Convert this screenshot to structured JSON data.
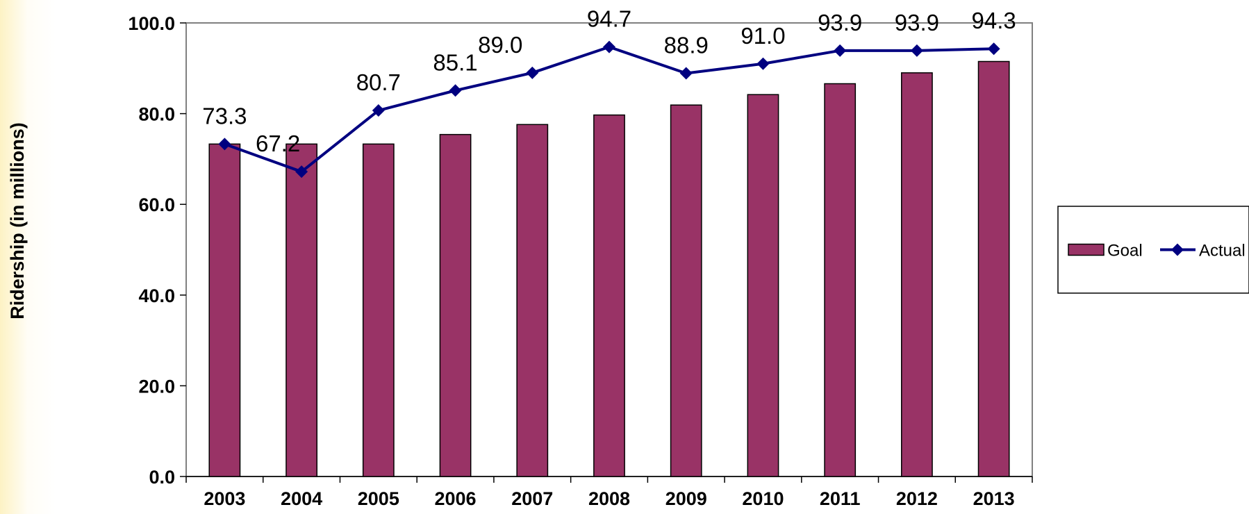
{
  "chart_data": {
    "type": "bar",
    "categories": [
      "2003",
      "2004",
      "2005",
      "2006",
      "2007",
      "2008",
      "2009",
      "2010",
      "2011",
      "2012",
      "2013"
    ],
    "series": [
      {
        "name": "Goal",
        "type": "bar",
        "values": [
          73.3,
          73.3,
          73.3,
          75.4,
          77.6,
          79.7,
          81.9,
          84.2,
          86.6,
          89.0,
          91.5
        ],
        "color": "#993366"
      },
      {
        "name": "Actual",
        "type": "line",
        "values": [
          73.3,
          67.2,
          80.7,
          85.1,
          89.0,
          94.7,
          88.9,
          91.0,
          93.9,
          93.9,
          94.3
        ],
        "data_labels": [
          "73.3",
          "67.2",
          "80.7",
          "85.1",
          "89.0",
          "94.7",
          "88.9",
          "91.0",
          "93.9",
          "93.9",
          "94.3"
        ],
        "color": "#000080",
        "marker": "diamond"
      }
    ],
    "ylabel": "Ridership (in millions)",
    "ylim": [
      0,
      100
    ],
    "yticks": [
      "0.0",
      "20.0",
      "40.0",
      "60.0",
      "80.0",
      "100.0"
    ],
    "legend": "right",
    "grid": false
  }
}
